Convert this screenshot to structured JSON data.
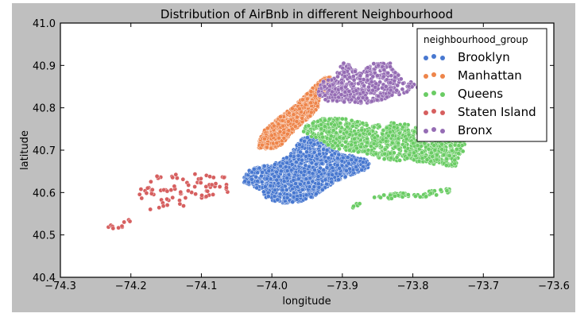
{
  "chart_data": {
    "type": "scatter",
    "title": "Distribution of AirBnb in different Neighbourhood",
    "xlabel": "longitude",
    "ylabel": "latitude",
    "xlim": [
      -74.3,
      -73.6
    ],
    "ylim": [
      40.4,
      41.0
    ],
    "xticks": [
      -74.3,
      -74.2,
      -74.1,
      -74.0,
      -73.9,
      -73.8,
      -73.7,
      -73.6
    ],
    "xtick_labels": [
      "−74.3",
      "−74.2",
      "−74.1",
      "−74.0",
      "−73.9",
      "−73.8",
      "−73.7",
      "−73.6"
    ],
    "yticks": [
      40.4,
      40.5,
      40.6,
      40.7,
      40.8,
      40.9,
      41.0
    ],
    "ytick_labels": [
      "40.4",
      "40.5",
      "40.6",
      "40.7",
      "40.8",
      "40.9",
      "41.0"
    ],
    "grid": false,
    "legend": {
      "title": "neighbourhood_group",
      "position": "upper right"
    },
    "series": [
      {
        "name": "Brooklyn",
        "color": "#4878d0",
        "density": 1400,
        "regions": [
          [
            [
              -74.04,
              40.64
            ],
            [
              -74.03,
              40.655
            ],
            [
              -73.99,
              40.672
            ],
            [
              -73.975,
              40.69
            ],
            [
              -73.965,
              40.71
            ],
            [
              -73.955,
              40.735
            ],
            [
              -73.935,
              40.728
            ],
            [
              -73.915,
              40.705
            ],
            [
              -73.895,
              40.69
            ],
            [
              -73.875,
              40.682
            ],
            [
              -73.86,
              40.675
            ],
            [
              -73.865,
              40.655
            ],
            [
              -73.89,
              40.64
            ],
            [
              -73.905,
              40.63
            ],
            [
              -73.925,
              40.61
            ],
            [
              -73.94,
              40.59
            ],
            [
              -73.96,
              40.577
            ],
            [
              -73.99,
              40.575
            ],
            [
              -74.01,
              40.59
            ],
            [
              -74.02,
              40.61
            ],
            [
              -74.04,
              40.625
            ]
          ]
        ]
      },
      {
        "name": "Manhattan",
        "color": "#ee854a",
        "density": 900,
        "regions": [
          [
            [
              -74.02,
              40.703
            ],
            [
              -74.018,
              40.72
            ],
            [
              -74.012,
              40.745
            ],
            [
              -73.995,
              40.77
            ],
            [
              -73.975,
              40.795
            ],
            [
              -73.955,
              40.825
            ],
            [
              -73.94,
              40.85
            ],
            [
              -73.925,
              40.872
            ],
            [
              -73.915,
              40.875
            ],
            [
              -73.918,
              40.855
            ],
            [
              -73.93,
              40.83
            ],
            [
              -73.935,
              40.8
            ],
            [
              -73.945,
              40.78
            ],
            [
              -73.96,
              40.76
            ],
            [
              -73.975,
              40.735
            ],
            [
              -73.985,
              40.712
            ],
            [
              -74.0,
              40.703
            ]
          ]
        ]
      },
      {
        "name": "Queens",
        "color": "#6acc64",
        "density": 1000,
        "regions": [
          [
            [
              -73.96,
              40.74
            ],
            [
              -73.95,
              40.76
            ],
            [
              -73.93,
              40.775
            ],
            [
              -73.9,
              40.775
            ],
            [
              -73.87,
              40.765
            ],
            [
              -73.85,
              40.76
            ],
            [
              -73.83,
              40.765
            ],
            [
              -73.8,
              40.76
            ],
            [
              -73.77,
              40.75
            ],
            [
              -73.745,
              40.735
            ],
            [
              -73.725,
              40.72
            ],
            [
              -73.73,
              40.69
            ],
            [
              -73.74,
              40.66
            ],
            [
              -73.76,
              40.665
            ],
            [
              -73.79,
              40.672
            ],
            [
              -73.82,
              40.675
            ],
            [
              -73.845,
              40.68
            ],
            [
              -73.86,
              40.69
            ],
            [
              -73.875,
              40.695
            ],
            [
              -73.895,
              40.7
            ],
            [
              -73.915,
              40.705
            ],
            [
              -73.935,
              40.728
            ]
          ]
        ],
        "extra": [
          {
            "region": [
              [
                -73.86,
                40.59
              ],
              [
                -73.82,
                40.6
              ],
              [
                -73.8,
                40.595
              ],
              [
                -73.77,
                40.605
              ],
              [
                -73.745,
                40.61
              ],
              [
                -73.75,
                40.595
              ],
              [
                -73.8,
                40.585
              ],
              [
                -73.84,
                40.585
              ]
            ],
            "density": 60
          },
          {
            "region": [
              [
                -73.895,
                40.565
              ],
              [
                -73.87,
                40.58
              ],
              [
                -73.865,
                40.573
              ],
              [
                -73.89,
                40.562
              ]
            ],
            "density": 6
          }
        ]
      },
      {
        "name": "Staten Island",
        "color": "#d65f5f",
        "density": 90,
        "regions": [
          [
            [
              -74.17,
              40.64
            ],
            [
              -74.12,
              40.645
            ],
            [
              -74.09,
              40.65
            ],
            [
              -74.065,
              40.64
            ],
            [
              -74.06,
              40.6
            ],
            [
              -74.08,
              40.595
            ],
            [
              -74.11,
              40.575
            ],
            [
              -74.14,
              40.56
            ],
            [
              -74.17,
              40.55
            ],
            [
              -74.19,
              40.54
            ],
            [
              -74.22,
              40.53
            ],
            [
              -74.25,
              40.51
            ],
            [
              -74.24,
              40.5
            ],
            [
              -74.21,
              40.52
            ],
            [
              -74.18,
              40.56
            ],
            [
              -74.19,
              40.6
            ]
          ]
        ]
      },
      {
        "name": "Bronx",
        "color": "#956cb4",
        "density": 450,
        "regions": [
          [
            [
              -73.935,
              40.835
            ],
            [
              -73.93,
              40.86
            ],
            [
              -73.915,
              40.875
            ],
            [
              -73.905,
              40.895
            ],
            [
              -73.895,
              40.91
            ],
            [
              -73.885,
              40.89
            ],
            [
              -73.87,
              40.885
            ],
            [
              -73.86,
              40.905
            ],
            [
              -73.83,
              40.905
            ],
            [
              -73.82,
              40.885
            ],
            [
              -73.815,
              40.865
            ],
            [
              -73.8,
              40.86
            ],
            [
              -73.79,
              40.85
            ],
            [
              -73.81,
              40.835
            ],
            [
              -73.84,
              40.82
            ],
            [
              -73.87,
              40.81
            ],
            [
              -73.9,
              40.81
            ],
            [
              -73.925,
              40.815
            ]
          ]
        ]
      }
    ]
  }
}
